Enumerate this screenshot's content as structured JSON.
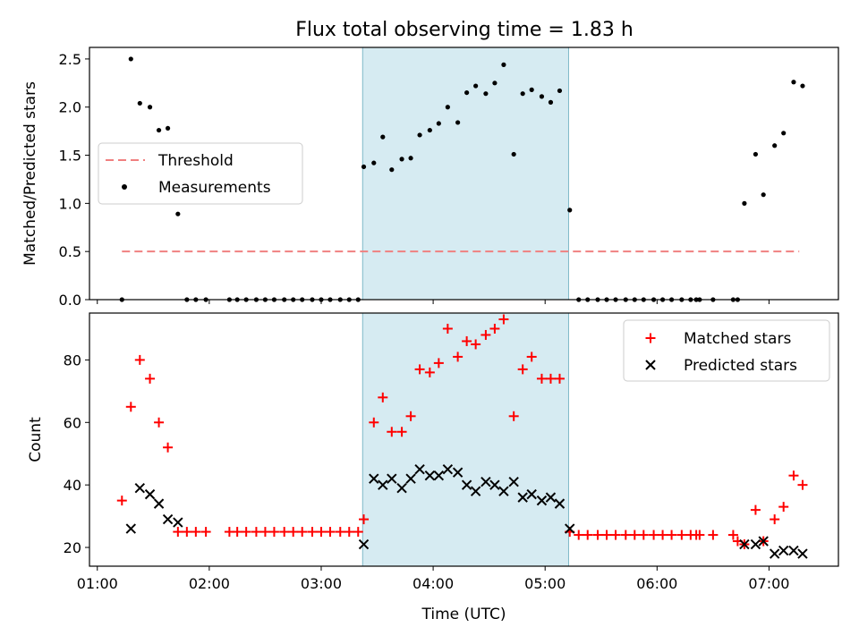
{
  "chart_data": {
    "title": "Flux total observing time = 1.83 h",
    "shared_x": {
      "label": "Time (UTC)",
      "range_hours": [
        0.93,
        7.62
      ],
      "tick_hours": [
        1,
        2,
        3,
        4,
        5,
        6,
        7
      ],
      "tick_labels": [
        "01:00",
        "02:00",
        "03:00",
        "04:00",
        "05:00",
        "06:00",
        "07:00"
      ]
    },
    "observing_window_hours": [
      3.37,
      5.21
    ],
    "window_color": "#add8e6",
    "subplots": [
      {
        "type": "scatter",
        "ylabel": "Matched/Predicted stars",
        "ylim": [
          0,
          2.62
        ],
        "yticks": [
          0.0,
          0.5,
          1.0,
          1.5,
          2.0,
          2.5
        ],
        "ytick_labels": [
          "0.0",
          "0.5",
          "1.0",
          "1.5",
          "2.0",
          "2.5"
        ],
        "legend": {
          "placement": "center-left",
          "entries": [
            {
              "label": "Threshold",
              "kind": "dashed-line",
              "color": "#f08080"
            },
            {
              "label": "Measurements",
              "kind": "dot",
              "color": "#000000"
            }
          ]
        },
        "threshold": {
          "y": 0.5,
          "x": [
            1.22,
            7.27
          ],
          "color": "#f08080"
        },
        "measurements": {
          "x": [
            1.22,
            1.3,
            1.38,
            1.47,
            1.55,
            1.63,
            1.72,
            1.8,
            1.88,
            1.97,
            2.18,
            2.25,
            2.33,
            2.42,
            2.5,
            2.58,
            2.67,
            2.75,
            2.83,
            2.92,
            3.0,
            3.08,
            3.17,
            3.25,
            3.33,
            3.38,
            3.47,
            3.55,
            3.63,
            3.72,
            3.8,
            3.88,
            3.97,
            4.05,
            4.13,
            4.22,
            4.3,
            4.38,
            4.47,
            4.55,
            4.63,
            4.72,
            4.8,
            4.88,
            4.97,
            5.05,
            5.13,
            5.22,
            5.3,
            5.38,
            5.47,
            5.55,
            5.63,
            5.72,
            5.8,
            5.88,
            5.97,
            6.05,
            6.13,
            6.22,
            6.3,
            6.35,
            6.38,
            6.5,
            6.68,
            6.72,
            6.78,
            6.88,
            6.95,
            7.05,
            7.13,
            7.22,
            7.3
          ],
          "y": [
            0,
            2.5,
            2.04,
            2.0,
            1.76,
            1.78,
            0.89,
            0,
            0,
            0,
            0,
            0,
            0,
            0,
            0,
            0,
            0,
            0,
            0,
            0,
            0,
            0,
            0,
            0,
            0,
            1.38,
            1.42,
            1.69,
            1.35,
            1.46,
            1.47,
            1.71,
            1.76,
            1.83,
            2.0,
            1.84,
            2.15,
            2.22,
            2.14,
            2.25,
            2.44,
            1.51,
            2.14,
            2.18,
            2.11,
            2.05,
            2.17,
            0.93,
            0,
            0,
            0,
            0,
            0,
            0,
            0,
            0,
            0,
            0,
            0,
            0,
            0,
            0,
            0,
            0,
            0,
            0,
            1.0,
            1.51,
            1.09,
            1.6,
            1.73,
            2.26,
            2.22
          ]
        }
      },
      {
        "type": "scatter",
        "ylabel": "Count",
        "ylim": [
          14,
          95
        ],
        "yticks": [
          20,
          40,
          60,
          80
        ],
        "ytick_labels": [
          "20",
          "40",
          "60",
          "80"
        ],
        "legend": {
          "placement": "top-right",
          "entries": [
            {
              "label": "Matched stars",
              "kind": "plus",
              "color": "#ff0000"
            },
            {
              "label": "Predicted stars",
              "kind": "cross",
              "color": "#000000"
            }
          ]
        },
        "matched": {
          "x": [
            1.22,
            1.3,
            1.38,
            1.47,
            1.55,
            1.63,
            1.72,
            1.8,
            1.88,
            1.97,
            2.18,
            2.25,
            2.33,
            2.42,
            2.5,
            2.58,
            2.67,
            2.75,
            2.83,
            2.92,
            3.0,
            3.08,
            3.17,
            3.25,
            3.33,
            3.38,
            3.47,
            3.55,
            3.63,
            3.72,
            3.8,
            3.88,
            3.97,
            4.05,
            4.13,
            4.22,
            4.3,
            4.38,
            4.47,
            4.55,
            4.63,
            4.72,
            4.8,
            4.88,
            4.97,
            5.05,
            5.13,
            5.22,
            5.3,
            5.38,
            5.47,
            5.55,
            5.63,
            5.72,
            5.8,
            5.88,
            5.97,
            6.05,
            6.13,
            6.22,
            6.3,
            6.35,
            6.38,
            6.5,
            6.68,
            6.72,
            6.78,
            6.88,
            6.95,
            7.05,
            7.13,
            7.22,
            7.3
          ],
          "y": [
            35,
            65,
            80,
            74,
            60,
            52,
            25,
            25,
            25,
            25,
            25,
            25,
            25,
            25,
            25,
            25,
            25,
            25,
            25,
            25,
            25,
            25,
            25,
            25,
            25,
            29,
            60,
            68,
            57,
            57,
            62,
            77,
            76,
            79,
            90,
            81,
            86,
            85,
            88,
            90,
            93,
            62,
            77,
            81,
            74,
            74,
            74,
            25,
            24,
            24,
            24,
            24,
            24,
            24,
            24,
            24,
            24,
            24,
            24,
            24,
            24,
            24,
            24,
            24,
            24,
            22,
            21,
            32,
            22,
            29,
            33,
            43,
            40
          ]
        },
        "predicted": {
          "x": [
            1.3,
            1.38,
            1.47,
            1.55,
            1.63,
            1.72,
            3.38,
            3.47,
            3.55,
            3.63,
            3.72,
            3.8,
            3.88,
            3.97,
            4.05,
            4.13,
            4.22,
            4.3,
            4.38,
            4.47,
            4.55,
            4.63,
            4.72,
            4.8,
            4.88,
            4.97,
            5.05,
            5.13,
            5.22,
            6.78,
            6.88,
            6.95,
            7.05,
            7.13,
            7.22,
            7.3
          ],
          "y": [
            26,
            39,
            37,
            34,
            29,
            28,
            21,
            42,
            40,
            42,
            39,
            42,
            45,
            43,
            43,
            45,
            44,
            40,
            38,
            41,
            40,
            38,
            41,
            36,
            37,
            35,
            36,
            34,
            26,
            21,
            21,
            22,
            18,
            19,
            19,
            18
          ]
        }
      }
    ]
  }
}
